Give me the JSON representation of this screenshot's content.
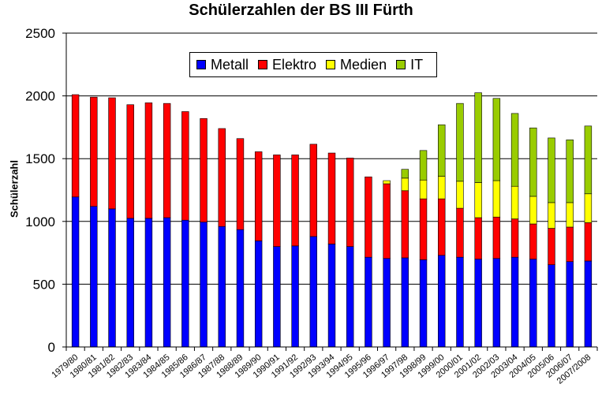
{
  "chart_data": {
    "type": "bar",
    "stacked": true,
    "title": "Schülerzahlen der BS III Fürth",
    "xlabel": "",
    "ylabel": "Schülerzahl",
    "ylim": [
      0,
      2500
    ],
    "yticks": [
      0,
      500,
      1000,
      1500,
      2000,
      2500
    ],
    "grid": true,
    "legend_position": "top",
    "categories": [
      "1979/80",
      "1980/81",
      "1981/82",
      "1982/83",
      "1983/84",
      "1984/85",
      "1985/86",
      "1986/87",
      "1987/88",
      "1988/89",
      "1989/90",
      "1990/91",
      "1991/92",
      "1992/93",
      "1993/94",
      "1994/95",
      "1995/96",
      "1996/97",
      "1997/98",
      "1998/99",
      "1999/00",
      "2000/01",
      "2001/02",
      "2002/03",
      "2003/04",
      "2004/05",
      "2005/06",
      "2006/07",
      "2007/2008"
    ],
    "series": [
      {
        "name": "Metall",
        "color": "#0000ff",
        "values": [
          1195,
          1120,
          1100,
          1025,
          1025,
          1030,
          1010,
          995,
          960,
          935,
          845,
          800,
          805,
          880,
          820,
          800,
          715,
          705,
          710,
          695,
          730,
          715,
          700,
          705,
          715,
          700,
          655,
          680,
          685
        ]
      },
      {
        "name": "Elektro",
        "color": "#ff0000",
        "values": [
          815,
          870,
          885,
          905,
          920,
          910,
          865,
          825,
          780,
          725,
          710,
          730,
          725,
          735,
          725,
          705,
          640,
          595,
          535,
          485,
          450,
          390,
          330,
          330,
          305,
          280,
          290,
          275,
          305
        ]
      },
      {
        "name": "Medien",
        "color": "#ffff00",
        "values": [
          0,
          0,
          0,
          0,
          0,
          0,
          0,
          0,
          0,
          0,
          0,
          0,
          0,
          0,
          0,
          0,
          0,
          25,
          100,
          150,
          180,
          215,
          280,
          290,
          260,
          220,
          205,
          195,
          230
        ]
      },
      {
        "name": "IT",
        "color": "#99cc00",
        "values": [
          0,
          0,
          0,
          0,
          0,
          0,
          0,
          0,
          0,
          0,
          0,
          0,
          0,
          0,
          0,
          0,
          0,
          0,
          70,
          235,
          410,
          620,
          715,
          655,
          580,
          545,
          515,
          500,
          540
        ]
      }
    ]
  }
}
